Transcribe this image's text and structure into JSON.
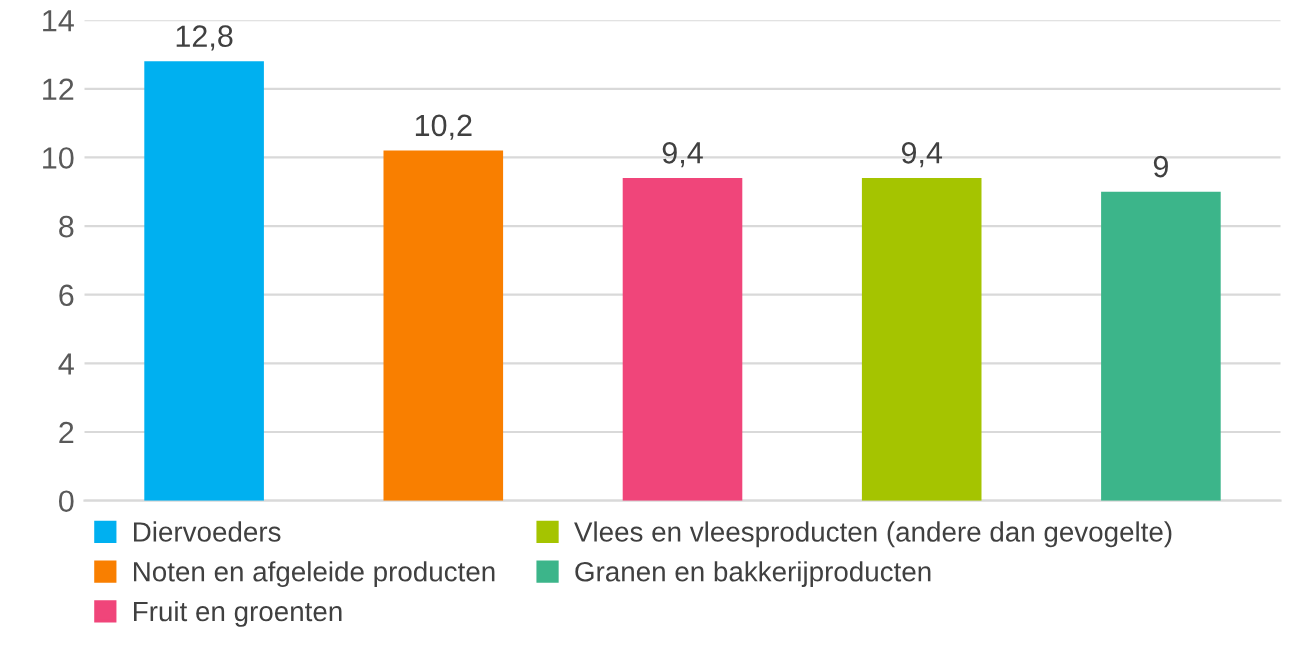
{
  "chart_data": {
    "type": "bar",
    "categories": [
      null,
      null,
      null,
      null,
      null
    ],
    "series": [
      {
        "name": "Diervoeders",
        "color": "#00b0f0",
        "values": [
          12.8,
          null,
          null,
          null,
          null
        ],
        "value_labels": [
          "12,8",
          null,
          null,
          null,
          null
        ]
      },
      {
        "name": "Noten en afgeleide producten",
        "color": "#f97f00",
        "values": [
          null,
          10.2,
          null,
          null,
          null
        ],
        "value_labels": [
          null,
          "10,2",
          null,
          null,
          null
        ]
      },
      {
        "name": "Fruit en groenten",
        "color": "#f0457a",
        "values": [
          null,
          null,
          9.4,
          null,
          null
        ],
        "value_labels": [
          null,
          null,
          "9,4",
          null,
          null
        ]
      },
      {
        "name": "Vlees en vleesproducten (andere dan gevogelte)",
        "color": "#a5c400",
        "values": [
          null,
          null,
          null,
          9.4,
          null
        ],
        "value_labels": [
          null,
          null,
          null,
          "9,4",
          null
        ]
      },
      {
        "name": "Granen en bakkerijproducten",
        "color": "#3cb58a",
        "values": [
          null,
          null,
          null,
          null,
          9
        ],
        "value_labels": [
          null,
          null,
          null,
          null,
          "9"
        ]
      }
    ],
    "ylim": [
      0,
      14
    ],
    "yticks": [
      0,
      2,
      4,
      6,
      8,
      10,
      12,
      14
    ],
    "grid": "y",
    "legend": "bottom"
  }
}
